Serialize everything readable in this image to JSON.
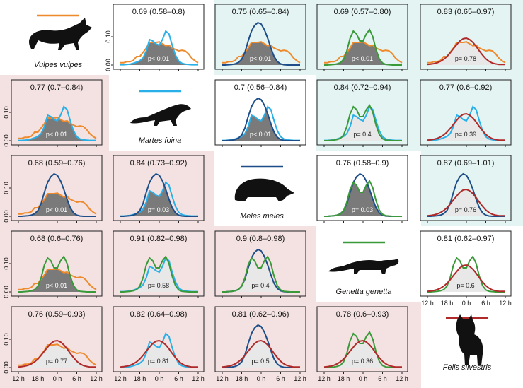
{
  "chart_data": {
    "type": "area",
    "layout": "pairwise-matrix",
    "time_axis_ticks": [
      "12 h",
      "18 h",
      "0 h",
      "6 h",
      "12 h"
    ],
    "y_ticks": [
      "0.00",
      "0.10"
    ],
    "colors": {
      "upper_background": "#e4f4f2",
      "lower_background": "#f3e2e1",
      "overlap_fill_significant": "#7a7a7a",
      "overlap_fill_not_significant": "#e8e8e8"
    },
    "species": [
      {
        "name": "Vulpes vulpes",
        "color": "#ee8a2c",
        "density": [
          [
            0,
            0.008
          ],
          [
            1,
            0.008
          ],
          [
            2,
            0.012
          ],
          [
            3,
            0.012
          ],
          [
            4,
            0.016
          ],
          [
            5,
            0.03
          ],
          [
            6,
            0.03
          ],
          [
            7,
            0.045
          ],
          [
            8,
            0.06
          ],
          [
            9,
            0.08
          ],
          [
            10,
            0.08
          ],
          [
            11,
            0.08
          ],
          [
            12,
            0.082
          ],
          [
            13,
            0.075
          ],
          [
            14,
            0.068
          ],
          [
            15,
            0.07
          ],
          [
            16,
            0.06
          ],
          [
            17,
            0.055
          ],
          [
            18,
            0.05
          ],
          [
            19,
            0.052
          ],
          [
            20,
            0.05
          ],
          [
            21,
            0.04
          ],
          [
            22,
            0.025
          ],
          [
            23,
            0.015
          ],
          [
            24,
            0.008
          ]
        ]
      },
      {
        "name": "Martes foina",
        "color": "#2ab0e8",
        "density": [
          [
            0,
            0.001
          ],
          [
            1,
            0.001
          ],
          [
            2,
            0.002
          ],
          [
            3,
            0.003
          ],
          [
            4,
            0.006
          ],
          [
            5,
            0.01
          ],
          [
            6,
            0.015
          ],
          [
            7,
            0.025
          ],
          [
            8,
            0.05
          ],
          [
            9,
            0.09
          ],
          [
            10,
            0.085
          ],
          [
            11,
            0.075
          ],
          [
            12,
            0.07
          ],
          [
            13,
            0.09
          ],
          [
            14,
            0.12
          ],
          [
            15,
            0.11
          ],
          [
            16,
            0.07
          ],
          [
            17,
            0.035
          ],
          [
            18,
            0.014
          ],
          [
            19,
            0.006
          ],
          [
            20,
            0.003
          ],
          [
            21,
            0.002
          ],
          [
            22,
            0.001
          ],
          [
            23,
            0.001
          ],
          [
            24,
            0.001
          ]
        ]
      },
      {
        "name": "Meles meles",
        "color": "#1d4e8a",
        "density": [
          [
            0,
            0.0
          ],
          [
            1,
            0.0
          ],
          [
            2,
            0.001
          ],
          [
            3,
            0.002
          ],
          [
            4,
            0.004
          ],
          [
            5,
            0.009
          ],
          [
            6,
            0.02
          ],
          [
            7,
            0.045
          ],
          [
            8,
            0.085
          ],
          [
            9,
            0.12
          ],
          [
            10,
            0.14
          ],
          [
            11,
            0.15
          ],
          [
            12,
            0.145
          ],
          [
            13,
            0.125
          ],
          [
            14,
            0.095
          ],
          [
            15,
            0.06
          ],
          [
            16,
            0.03
          ],
          [
            17,
            0.012
          ],
          [
            18,
            0.004
          ],
          [
            19,
            0.001
          ],
          [
            20,
            0.0
          ],
          [
            21,
            0.0
          ],
          [
            22,
            0.0
          ],
          [
            23,
            0.0
          ],
          [
            24,
            0.0
          ]
        ]
      },
      {
        "name": "Genetta genetta",
        "color": "#3a9a3a",
        "density": [
          [
            0,
            0.0
          ],
          [
            1,
            0.0
          ],
          [
            2,
            0.001
          ],
          [
            3,
            0.002
          ],
          [
            4,
            0.004
          ],
          [
            5,
            0.008
          ],
          [
            6,
            0.02
          ],
          [
            7,
            0.05
          ],
          [
            8,
            0.095
          ],
          [
            9,
            0.12
          ],
          [
            10,
            0.11
          ],
          [
            11,
            0.085
          ],
          [
            12,
            0.085
          ],
          [
            13,
            0.11
          ],
          [
            14,
            0.125
          ],
          [
            15,
            0.1
          ],
          [
            16,
            0.055
          ],
          [
            17,
            0.022
          ],
          [
            18,
            0.007
          ],
          [
            19,
            0.002
          ],
          [
            20,
            0.001
          ],
          [
            21,
            0.0
          ],
          [
            22,
            0.0
          ],
          [
            23,
            0.0
          ],
          [
            24,
            0.0
          ]
        ]
      },
      {
        "name": "Felis silvestris",
        "color": "#b02a2a",
        "density": [
          [
            0,
            0.002
          ],
          [
            1,
            0.003
          ],
          [
            2,
            0.005
          ],
          [
            3,
            0.008
          ],
          [
            4,
            0.013
          ],
          [
            5,
            0.02
          ],
          [
            6,
            0.03
          ],
          [
            7,
            0.043
          ],
          [
            8,
            0.058
          ],
          [
            9,
            0.072
          ],
          [
            10,
            0.085
          ],
          [
            11,
            0.093
          ],
          [
            12,
            0.095
          ],
          [
            13,
            0.09
          ],
          [
            14,
            0.08
          ],
          [
            15,
            0.066
          ],
          [
            16,
            0.05
          ],
          [
            17,
            0.035
          ],
          [
            18,
            0.022
          ],
          [
            19,
            0.013
          ],
          [
            20,
            0.007
          ],
          [
            21,
            0.004
          ],
          [
            22,
            0.002
          ],
          [
            23,
            0.002
          ],
          [
            24,
            0.002
          ]
        ]
      }
    ],
    "panels": [
      {
        "row": 0,
        "col": 1,
        "species": [
          "Vulpes vulpes",
          "Martes foina"
        ],
        "overlap": "0.69 (0.58–0.8)",
        "p": "p< 0.01",
        "significant": true
      },
      {
        "row": 0,
        "col": 2,
        "species": [
          "Vulpes vulpes",
          "Meles meles"
        ],
        "overlap": "0.75 (0.65–0.84)",
        "p": "p< 0.01",
        "significant": true
      },
      {
        "row": 0,
        "col": 3,
        "species": [
          "Vulpes vulpes",
          "Genetta genetta"
        ],
        "overlap": "0.69 (0.57–0.80)",
        "p": "p< 0.01",
        "significant": true
      },
      {
        "row": 0,
        "col": 4,
        "species": [
          "Vulpes vulpes",
          "Felis silvestris"
        ],
        "overlap": "0.83 (0.65–0.97)",
        "p": "p= 0.78",
        "significant": false
      },
      {
        "row": 1,
        "col": 0,
        "species": [
          "Vulpes vulpes",
          "Martes foina"
        ],
        "overlap": "0.77 (0.7–0.84)",
        "p": "p< 0.01",
        "significant": true
      },
      {
        "row": 1,
        "col": 2,
        "species": [
          "Martes foina",
          "Meles meles"
        ],
        "overlap": "0.7 (0.56–0.84)",
        "p": "p< 0.01",
        "significant": true
      },
      {
        "row": 1,
        "col": 3,
        "species": [
          "Martes foina",
          "Genetta genetta"
        ],
        "overlap": "0.84 (0.72–0.94)",
        "p": "p= 0.4",
        "significant": false
      },
      {
        "row": 1,
        "col": 4,
        "species": [
          "Martes foina",
          "Felis silvestris"
        ],
        "overlap": "0.77 (0.6–0.92)",
        "p": "p= 0.39",
        "significant": false
      },
      {
        "row": 2,
        "col": 0,
        "species": [
          "Vulpes vulpes",
          "Meles meles"
        ],
        "overlap": "0.68 (0.59–0.76)",
        "p": "p< 0.01",
        "significant": true
      },
      {
        "row": 2,
        "col": 1,
        "species": [
          "Martes foina",
          "Meles meles"
        ],
        "overlap": "0.84 (0.73–0.92)",
        "p": "p= 0.03",
        "significant": true
      },
      {
        "row": 2,
        "col": 3,
        "species": [
          "Meles meles",
          "Genetta genetta"
        ],
        "overlap": "0.76 (0.58–0.9)",
        "p": "p= 0.03",
        "significant": true
      },
      {
        "row": 2,
        "col": 4,
        "species": [
          "Meles meles",
          "Felis silvestris"
        ],
        "overlap": "0.87 (0.69–1.01)",
        "p": "p= 0.76",
        "significant": false
      },
      {
        "row": 3,
        "col": 0,
        "species": [
          "Vulpes vulpes",
          "Genetta genetta"
        ],
        "overlap": "0.68 (0.6–0.76)",
        "p": "p< 0.01",
        "significant": true
      },
      {
        "row": 3,
        "col": 1,
        "species": [
          "Martes foina",
          "Genetta genetta"
        ],
        "overlap": "0.91 (0.82–0.98)",
        "p": "p= 0.58",
        "significant": false
      },
      {
        "row": 3,
        "col": 2,
        "species": [
          "Meles meles",
          "Genetta genetta"
        ],
        "overlap": "0.9 (0.8–0.98)",
        "p": "p= 0.4",
        "significant": false
      },
      {
        "row": 3,
        "col": 4,
        "species": [
          "Genetta genetta",
          "Felis silvestris"
        ],
        "overlap": "0.81 (0.62–0.97)",
        "p": "p= 0.6",
        "significant": false
      },
      {
        "row": 4,
        "col": 0,
        "species": [
          "Vulpes vulpes",
          "Felis silvestris"
        ],
        "overlap": "0.76 (0.59–0.93)",
        "p": "p= 0.77",
        "significant": false
      },
      {
        "row": 4,
        "col": 1,
        "species": [
          "Martes foina",
          "Felis silvestris"
        ],
        "overlap": "0.82 (0.64–0.98)",
        "p": "p= 0.81",
        "significant": false
      },
      {
        "row": 4,
        "col": 2,
        "species": [
          "Meles meles",
          "Felis silvestris"
        ],
        "overlap": "0.81 (0.62–0.96)",
        "p": "p= 0.5",
        "significant": false
      },
      {
        "row": 4,
        "col": 3,
        "species": [
          "Genetta genetta",
          "Felis silvestris"
        ],
        "overlap": "0.78 (0.6–0.93)",
        "p": "p= 0.36",
        "significant": false
      }
    ],
    "silhouettes": [
      "fox-silhouette-icon",
      "marten-silhouette-icon",
      "badger-silhouette-icon",
      "genet-silhouette-icon",
      "wildcat-silhouette-icon"
    ]
  }
}
